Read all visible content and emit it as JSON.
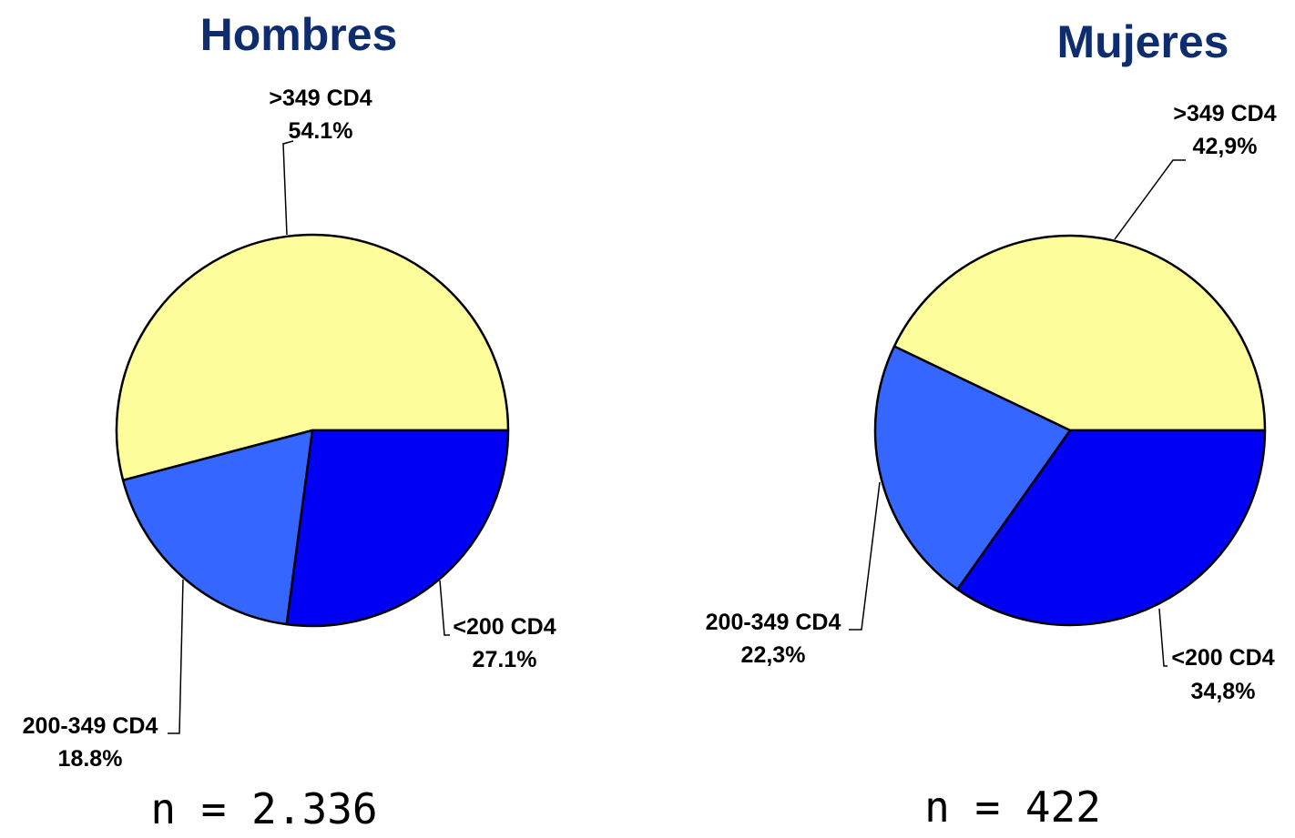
{
  "chart_data": [
    {
      "type": "pie",
      "title": "Hombres",
      "note": "n = 2.336",
      "slices": [
        {
          "label": ">349 CD4",
          "value_text": "54.1%",
          "value": 54.1,
          "color": "#fdfd9b"
        },
        {
          "label": "<200 CD4",
          "value_text": "27.1%",
          "value": 27.1,
          "color": "#0000f5"
        },
        {
          "label": "200-349 CD4",
          "value_text": "18.8%",
          "value": 18.8,
          "color": "#3566ff"
        }
      ]
    },
    {
      "type": "pie",
      "title": "Mujeres",
      "note": "n = 422",
      "slices": [
        {
          "label": ">349 CD4",
          "value_text": "42,9%",
          "value": 42.9,
          "color": "#fdfd9b"
        },
        {
          "label": "<200 CD4",
          "value_text": "34,8%",
          "value": 34.8,
          "color": "#0000f5"
        },
        {
          "label": "200-349 CD4",
          "value_text": "22,3%",
          "value": 22.3,
          "color": "#3566ff"
        }
      ]
    }
  ]
}
